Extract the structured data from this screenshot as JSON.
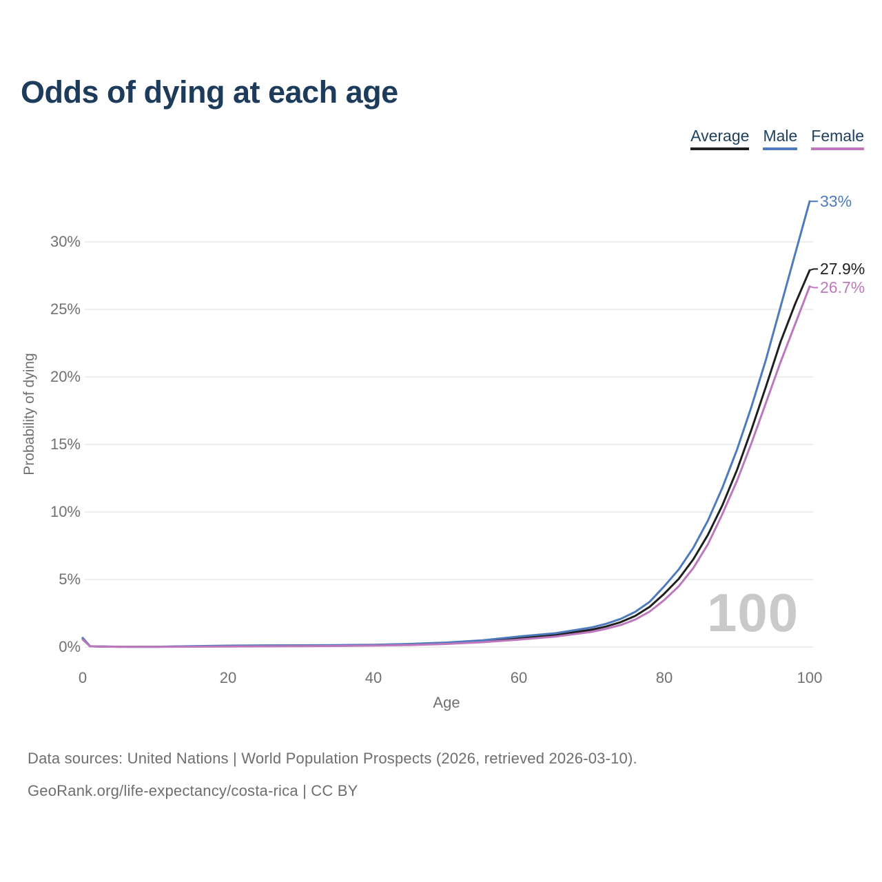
{
  "header": {
    "title": "Odds of dying at each age"
  },
  "legend": {
    "items": [
      {
        "label": "Average",
        "color": "#1f1f1f"
      },
      {
        "label": "Male",
        "color": "#4c7abc"
      },
      {
        "label": "Female",
        "color": "#bd77bd"
      }
    ]
  },
  "chart_data": {
    "type": "line",
    "title": "Odds of dying at each age",
    "xlabel": "Age",
    "ylabel": "Probability of dying",
    "xlim": [
      0,
      100
    ],
    "ylim": [
      0,
      33
    ],
    "grid": "horizontal",
    "legend_position": "top-right",
    "watermark": "100",
    "x_ticks": [
      0,
      20,
      40,
      60,
      80,
      100
    ],
    "y_ticks": [
      {
        "value": 0,
        "label": "0%"
      },
      {
        "value": 5,
        "label": "5%"
      },
      {
        "value": 10,
        "label": "10%"
      },
      {
        "value": 15,
        "label": "15%"
      },
      {
        "value": 20,
        "label": "20%"
      },
      {
        "value": 25,
        "label": "25%"
      },
      {
        "value": 30,
        "label": "30%"
      }
    ],
    "x": [
      0,
      1,
      2,
      5,
      10,
      15,
      20,
      25,
      30,
      35,
      40,
      45,
      50,
      55,
      60,
      65,
      70,
      72,
      74,
      76,
      78,
      80,
      82,
      84,
      86,
      88,
      90,
      92,
      94,
      96,
      98,
      100
    ],
    "series": [
      {
        "name": "Average",
        "color": "#1f1f1f",
        "end_label": "27.9%",
        "values": [
          0.62,
          0.055,
          0.04,
          0.02,
          0.018,
          0.042,
          0.07,
          0.085,
          0.095,
          0.11,
          0.14,
          0.19,
          0.28,
          0.42,
          0.66,
          0.89,
          1.28,
          1.52,
          1.84,
          2.3,
          2.98,
          3.95,
          5.05,
          6.5,
          8.3,
          10.5,
          13.1,
          16.1,
          19.3,
          22.6,
          25.4,
          27.9
        ]
      },
      {
        "name": "Male",
        "color": "#4c7abc",
        "end_label": "33%",
        "values": [
          0.68,
          0.06,
          0.045,
          0.025,
          0.02,
          0.06,
          0.1,
          0.12,
          0.13,
          0.145,
          0.17,
          0.23,
          0.33,
          0.5,
          0.78,
          1.02,
          1.45,
          1.72,
          2.08,
          2.6,
          3.35,
          4.5,
          5.75,
          7.35,
          9.35,
          11.8,
          14.6,
          17.8,
          21.3,
          25.2,
          29.1,
          33.0
        ]
      },
      {
        "name": "Female",
        "color": "#bd77bd",
        "end_label": "26.7%",
        "values": [
          0.55,
          0.05,
          0.035,
          0.018,
          0.015,
          0.025,
          0.04,
          0.05,
          0.06,
          0.078,
          0.105,
          0.15,
          0.23,
          0.355,
          0.55,
          0.77,
          1.12,
          1.35,
          1.63,
          2.03,
          2.63,
          3.48,
          4.5,
          5.85,
          7.6,
          9.85,
          12.3,
          15.1,
          18.1,
          21.1,
          23.9,
          26.7
        ]
      }
    ]
  },
  "footer": {
    "line1": "Data sources: United Nations | World Population Prospects (2026, retrieved 2026-03-10).",
    "line2": "GeoRank.org/life-expectancy/costa-rica | CC BY"
  }
}
